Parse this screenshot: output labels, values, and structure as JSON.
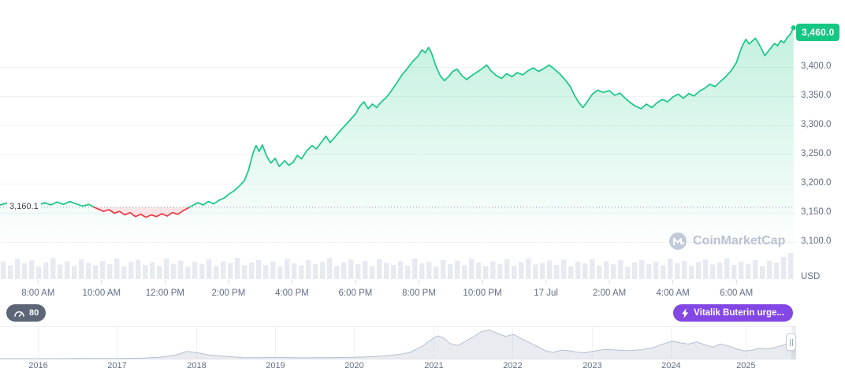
{
  "watermark": {
    "text": "CoinMarketCap"
  },
  "price_axis": {
    "current_badge": "3,460.0",
    "baseline_label": "3,160.1",
    "unit": "USD"
  },
  "badges": {
    "gauge": {
      "value": "80"
    },
    "news": {
      "label": "Vitalik Buterin urge...",
      "color": "#8247e5"
    }
  },
  "colors": {
    "up": "#16c784",
    "down": "#ea3943",
    "badge_green": "#16c784",
    "news_purple": "#8247e5",
    "axis_text": "#616e85",
    "volume": "#e7eaf1"
  },
  "chart_data": [
    {
      "type": "line",
      "name": "eth-price-24h",
      "unit": "USD",
      "open_price": 3160.1,
      "last_price": 3460.0,
      "up_color": "#16c784",
      "down_color": "#ea3943",
      "ylim": [
        3085,
        3475
      ],
      "y_ticks": [
        {
          "price": 3400,
          "label": "3,400.0"
        },
        {
          "price": 3350,
          "label": "3,350.0"
        },
        {
          "price": 3300,
          "label": "3,300.0"
        },
        {
          "price": 3250,
          "label": "3,250.0"
        },
        {
          "price": 3200,
          "label": "3,200.0"
        },
        {
          "price": 3150,
          "label": "3,150.0"
        },
        {
          "price": 3100,
          "label": "3,100.0"
        }
      ],
      "x_ticks": [
        {
          "m": 72,
          "label": "8:00 AM"
        },
        {
          "m": 192,
          "label": "10:00 AM"
        },
        {
          "m": 312,
          "label": "12:00 PM"
        },
        {
          "m": 432,
          "label": "2:00 PM"
        },
        {
          "m": 552,
          "label": "4:00 PM"
        },
        {
          "m": 672,
          "label": "6:00 PM"
        },
        {
          "m": 792,
          "label": "8:00 PM"
        },
        {
          "m": 912,
          "label": "10:00 PM"
        },
        {
          "m": 1032,
          "label": "17 Jul"
        },
        {
          "m": 1152,
          "label": "2:00 AM"
        },
        {
          "m": 1272,
          "label": "4:00 AM"
        },
        {
          "m": 1392,
          "label": "6:00 AM"
        }
      ],
      "points": [
        [
          0,
          3164
        ],
        [
          12,
          3167
        ],
        [
          24,
          3162
        ],
        [
          36,
          3166
        ],
        [
          48,
          3161
        ],
        [
          60,
          3165
        ],
        [
          72,
          3163
        ],
        [
          84,
          3168
        ],
        [
          96,
          3164
        ],
        [
          108,
          3169
        ],
        [
          120,
          3165
        ],
        [
          132,
          3170
        ],
        [
          144,
          3166
        ],
        [
          156,
          3162
        ],
        [
          168,
          3165
        ],
        [
          178,
          3160
        ],
        [
          186,
          3157
        ],
        [
          196,
          3153
        ],
        [
          206,
          3156
        ],
        [
          216,
          3150
        ],
        [
          226,
          3153
        ],
        [
          236,
          3147
        ],
        [
          246,
          3151
        ],
        [
          256,
          3144
        ],
        [
          266,
          3148
        ],
        [
          276,
          3143
        ],
        [
          286,
          3147
        ],
        [
          296,
          3144
        ],
        [
          306,
          3149
        ],
        [
          316,
          3145
        ],
        [
          326,
          3151
        ],
        [
          336,
          3148
        ],
        [
          346,
          3154
        ],
        [
          356,
          3159
        ],
        [
          364,
          3163
        ],
        [
          374,
          3168
        ],
        [
          384,
          3164
        ],
        [
          394,
          3170
        ],
        [
          404,
          3166
        ],
        [
          414,
          3172
        ],
        [
          424,
          3176
        ],
        [
          432,
          3182
        ],
        [
          442,
          3188
        ],
        [
          452,
          3196
        ],
        [
          462,
          3206
        ],
        [
          470,
          3224
        ],
        [
          478,
          3252
        ],
        [
          484,
          3266
        ],
        [
          490,
          3256
        ],
        [
          496,
          3267
        ],
        [
          504,
          3248
        ],
        [
          512,
          3236
        ],
        [
          520,
          3244
        ],
        [
          528,
          3230
        ],
        [
          538,
          3240
        ],
        [
          546,
          3232
        ],
        [
          554,
          3237
        ],
        [
          562,
          3249
        ],
        [
          570,
          3243
        ],
        [
          580,
          3257
        ],
        [
          590,
          3266
        ],
        [
          598,
          3260
        ],
        [
          608,
          3272
        ],
        [
          616,
          3282
        ],
        [
          624,
          3271
        ],
        [
          632,
          3279
        ],
        [
          642,
          3290
        ],
        [
          652,
          3300
        ],
        [
          662,
          3310
        ],
        [
          672,
          3320
        ],
        [
          680,
          3333
        ],
        [
          688,
          3341
        ],
        [
          696,
          3329
        ],
        [
          704,
          3337
        ],
        [
          712,
          3331
        ],
        [
          720,
          3340
        ],
        [
          730,
          3348
        ],
        [
          740,
          3360
        ],
        [
          750,
          3373
        ],
        [
          760,
          3387
        ],
        [
          770,
          3398
        ],
        [
          780,
          3410
        ],
        [
          790,
          3419
        ],
        [
          798,
          3430
        ],
        [
          804,
          3425
        ],
        [
          810,
          3434
        ],
        [
          816,
          3424
        ],
        [
          824,
          3402
        ],
        [
          832,
          3386
        ],
        [
          840,
          3377
        ],
        [
          848,
          3384
        ],
        [
          856,
          3393
        ],
        [
          864,
          3397
        ],
        [
          872,
          3387
        ],
        [
          882,
          3379
        ],
        [
          892,
          3386
        ],
        [
          902,
          3392
        ],
        [
          912,
          3398
        ],
        [
          920,
          3404
        ],
        [
          928,
          3394
        ],
        [
          938,
          3386
        ],
        [
          948,
          3381
        ],
        [
          958,
          3389
        ],
        [
          968,
          3384
        ],
        [
          978,
          3391
        ],
        [
          988,
          3387
        ],
        [
          998,
          3394
        ],
        [
          1008,
          3399
        ],
        [
          1018,
          3393
        ],
        [
          1028,
          3398
        ],
        [
          1038,
          3404
        ],
        [
          1048,
          3397
        ],
        [
          1058,
          3389
        ],
        [
          1068,
          3379
        ],
        [
          1078,
          3367
        ],
        [
          1086,
          3352
        ],
        [
          1094,
          3340
        ],
        [
          1102,
          3331
        ],
        [
          1110,
          3341
        ],
        [
          1120,
          3354
        ],
        [
          1130,
          3361
        ],
        [
          1140,
          3357
        ],
        [
          1152,
          3360
        ],
        [
          1162,
          3352
        ],
        [
          1172,
          3356
        ],
        [
          1182,
          3347
        ],
        [
          1192,
          3339
        ],
        [
          1202,
          3333
        ],
        [
          1212,
          3329
        ],
        [
          1222,
          3337
        ],
        [
          1232,
          3331
        ],
        [
          1242,
          3339
        ],
        [
          1252,
          3345
        ],
        [
          1262,
          3341
        ],
        [
          1272,
          3349
        ],
        [
          1282,
          3354
        ],
        [
          1292,
          3347
        ],
        [
          1302,
          3355
        ],
        [
          1312,
          3351
        ],
        [
          1322,
          3359
        ],
        [
          1332,
          3364
        ],
        [
          1342,
          3371
        ],
        [
          1352,
          3367
        ],
        [
          1362,
          3376
        ],
        [
          1372,
          3384
        ],
        [
          1382,
          3394
        ],
        [
          1392,
          3408
        ],
        [
          1398,
          3424
        ],
        [
          1404,
          3438
        ],
        [
          1410,
          3448
        ],
        [
          1416,
          3440
        ],
        [
          1422,
          3445
        ],
        [
          1428,
          3450
        ],
        [
          1434,
          3441
        ],
        [
          1440,
          3431
        ],
        [
          1446,
          3420
        ],
        [
          1452,
          3427
        ],
        [
          1458,
          3434
        ],
        [
          1464,
          3441
        ],
        [
          1470,
          3437
        ],
        [
          1476,
          3446
        ],
        [
          1482,
          3442
        ],
        [
          1488,
          3451
        ],
        [
          1494,
          3457
        ],
        [
          1500,
          3468
        ]
      ]
    },
    {
      "type": "bar",
      "name": "volume",
      "color": "#e7eaf1",
      "values": [
        0.62,
        0.48,
        0.71,
        0.55,
        0.66,
        0.43,
        0.58,
        0.74,
        0.51,
        0.63,
        0.46,
        0.69,
        0.57,
        0.49,
        0.64,
        0.52,
        0.73,
        0.45,
        0.6,
        0.68,
        0.5,
        0.59,
        0.47,
        0.72,
        0.54,
        0.65,
        0.44,
        0.61,
        0.53,
        0.7,
        0.46,
        0.63,
        0.56,
        0.75,
        0.48,
        0.58,
        0.67,
        0.5,
        0.62,
        0.45,
        0.71,
        0.55,
        0.49,
        0.66,
        0.53,
        0.61,
        0.74,
        0.47,
        0.59,
        0.68,
        0.52,
        0.64,
        0.45,
        0.7,
        0.57,
        0.5,
        0.63,
        0.48,
        0.72,
        0.55,
        0.6,
        0.44,
        0.67,
        0.53,
        0.65,
        0.49,
        0.71,
        0.58,
        0.46,
        0.62,
        0.54,
        0.69,
        0.47,
        0.6,
        0.73,
        0.51,
        0.57,
        0.65,
        0.5,
        0.68,
        0.45,
        0.61,
        0.55,
        0.7,
        0.48,
        0.63,
        0.52,
        0.66,
        0.44,
        0.59,
        0.67,
        0.53,
        0.61,
        0.49,
        0.72,
        0.56,
        0.64,
        0.47,
        0.6,
        0.69,
        0.51,
        0.58,
        0.73,
        0.5,
        0.62,
        0.54,
        0.67,
        0.46,
        0.65,
        0.59,
        0.78,
        0.92
      ]
    },
    {
      "type": "area",
      "name": "price-history-navigator",
      "years": [
        {
          "f": 0.048,
          "label": "2016"
        },
        {
          "f": 0.147,
          "label": "2017"
        },
        {
          "f": 0.247,
          "label": "2018"
        },
        {
          "f": 0.346,
          "label": "2019"
        },
        {
          "f": 0.445,
          "label": "2020"
        },
        {
          "f": 0.545,
          "label": "2021"
        },
        {
          "f": 0.644,
          "label": "2022"
        },
        {
          "f": 0.744,
          "label": "2023"
        },
        {
          "f": 0.843,
          "label": "2024"
        },
        {
          "f": 0.937,
          "label": "2025"
        }
      ],
      "points": [
        [
          0,
          0.012
        ],
        [
          0.03,
          0.013
        ],
        [
          0.06,
          0.012
        ],
        [
          0.09,
          0.015
        ],
        [
          0.12,
          0.018
        ],
        [
          0.15,
          0.022
        ],
        [
          0.18,
          0.035
        ],
        [
          0.2,
          0.06
        ],
        [
          0.22,
          0.13
        ],
        [
          0.235,
          0.26
        ],
        [
          0.25,
          0.2
        ],
        [
          0.262,
          0.14
        ],
        [
          0.275,
          0.11
        ],
        [
          0.29,
          0.08
        ],
        [
          0.305,
          0.05
        ],
        [
          0.32,
          0.045
        ],
        [
          0.335,
          0.05
        ],
        [
          0.35,
          0.058
        ],
        [
          0.365,
          0.05
        ],
        [
          0.38,
          0.042
        ],
        [
          0.4,
          0.045
        ],
        [
          0.42,
          0.05
        ],
        [
          0.44,
          0.055
        ],
        [
          0.46,
          0.07
        ],
        [
          0.48,
          0.1
        ],
        [
          0.5,
          0.15
        ],
        [
          0.515,
          0.22
        ],
        [
          0.53,
          0.42
        ],
        [
          0.54,
          0.62
        ],
        [
          0.55,
          0.78
        ],
        [
          0.558,
          0.7
        ],
        [
          0.565,
          0.52
        ],
        [
          0.575,
          0.45
        ],
        [
          0.585,
          0.6
        ],
        [
          0.595,
          0.75
        ],
        [
          0.605,
          0.92
        ],
        [
          0.615,
          0.97
        ],
        [
          0.625,
          0.85
        ],
        [
          0.635,
          0.76
        ],
        [
          0.645,
          0.82
        ],
        [
          0.655,
          0.68
        ],
        [
          0.665,
          0.55
        ],
        [
          0.675,
          0.42
        ],
        [
          0.685,
          0.28
        ],
        [
          0.695,
          0.22
        ],
        [
          0.705,
          0.3
        ],
        [
          0.715,
          0.28
        ],
        [
          0.725,
          0.23
        ],
        [
          0.735,
          0.21
        ],
        [
          0.745,
          0.26
        ],
        [
          0.76,
          0.32
        ],
        [
          0.775,
          0.3
        ],
        [
          0.79,
          0.28
        ],
        [
          0.805,
          0.31
        ],
        [
          0.82,
          0.38
        ],
        [
          0.835,
          0.52
        ],
        [
          0.845,
          0.6
        ],
        [
          0.855,
          0.54
        ],
        [
          0.865,
          0.5
        ],
        [
          0.875,
          0.57
        ],
        [
          0.885,
          0.48
        ],
        [
          0.895,
          0.4
        ],
        [
          0.905,
          0.5
        ],
        [
          0.915,
          0.44
        ],
        [
          0.925,
          0.34
        ],
        [
          0.935,
          0.27
        ],
        [
          0.945,
          0.3
        ],
        [
          0.955,
          0.36
        ],
        [
          0.965,
          0.34
        ],
        [
          0.975,
          0.4
        ],
        [
          0.985,
          0.47
        ],
        [
          1,
          0.53
        ]
      ]
    }
  ]
}
